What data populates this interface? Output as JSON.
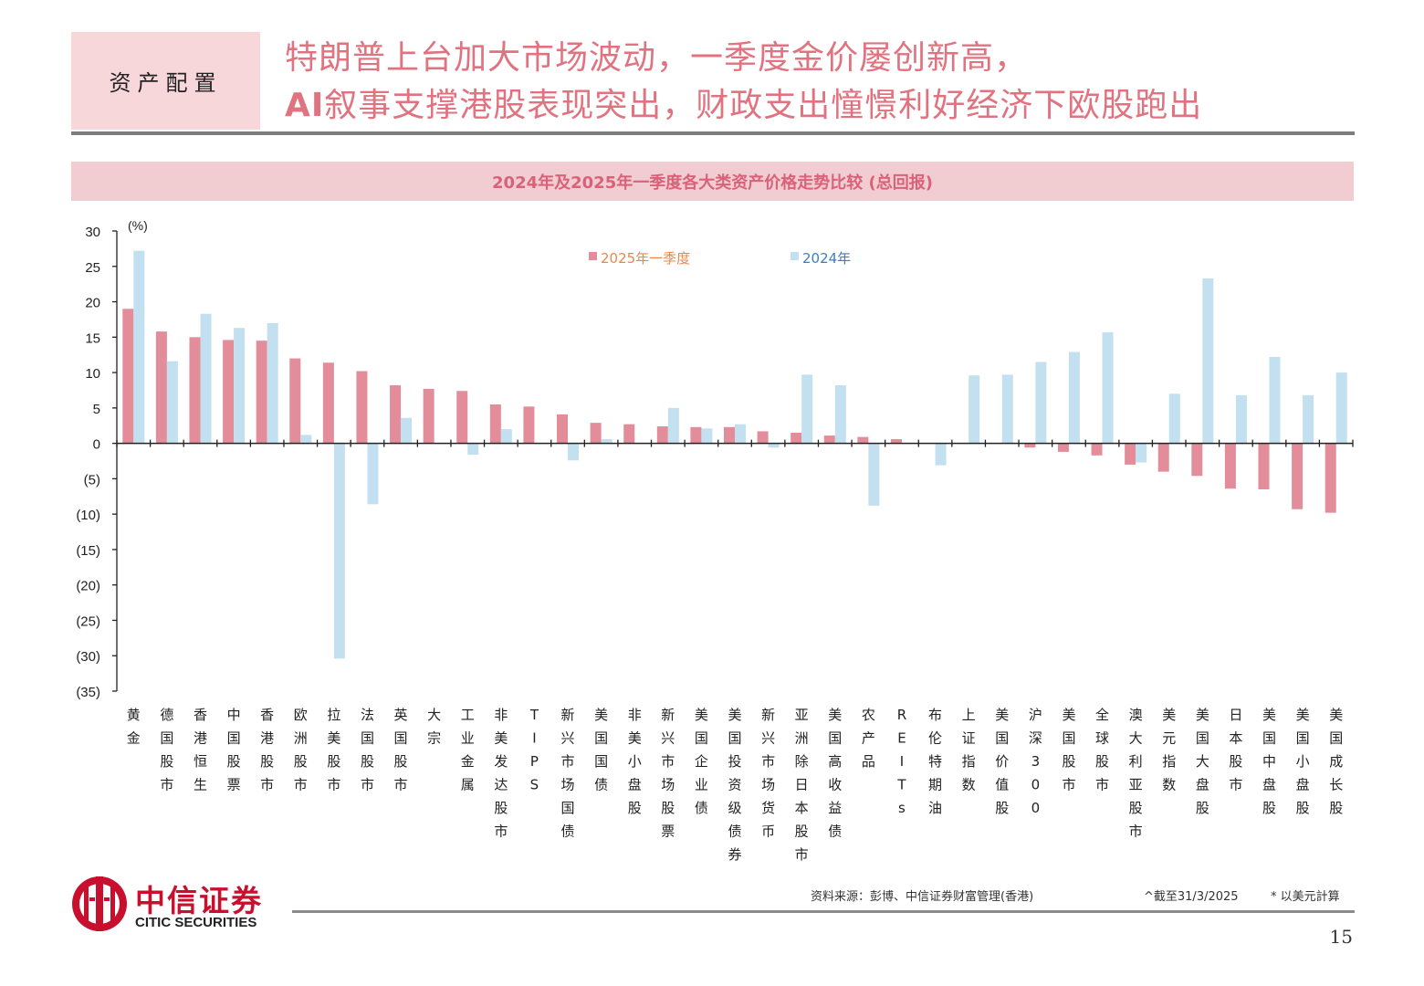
{
  "header": {
    "section_tag": "资产配置",
    "title_line1": "特朗普上台加大市场波动，一季度金价屡创新高，",
    "title_line2_prefix": "AI",
    "title_line2_rest": "叙事支撑港股表现突出，财政支出憧憬利好经济下欧股跑出"
  },
  "chart_title": "2024年及2025年一季度各大类资产价格走势比较 (总回报)",
  "colors": {
    "q1_2025": "#e28d99",
    "y2024": "#c2e0ef",
    "accent": "#e0737f",
    "legend_2025_text": "#e8884a",
    "legend_2024_text": "#3d7ebd"
  },
  "chart_data": {
    "type": "bar",
    "unit_label": "(%)",
    "ylim": [
      -35,
      30
    ],
    "yticks": [
      30,
      25,
      20,
      15,
      10,
      5,
      0,
      -5,
      -10,
      -15,
      -20,
      -25,
      -30,
      -35
    ],
    "ytick_labels": [
      "30",
      "25",
      "20",
      "15",
      "10",
      "5",
      "0",
      "(5)",
      "(10)",
      "(15)",
      "(20)",
      "(25)",
      "(30)",
      "(35)"
    ],
    "categories": [
      "黄金",
      "德国股市",
      "香港恒生",
      "中国股票",
      "香港股市",
      "欧洲股市",
      "拉美股市",
      "法国股市",
      "英国股市",
      "大宗",
      "工业金属",
      "非美发达股市",
      "TIPS",
      "新兴市场国债",
      "美国国债",
      "非美小盘股",
      "新兴市场股票",
      "美国企业债",
      "美国投资级债券",
      "新兴市场货币",
      "亚洲除日本股市",
      "美国高收益债",
      "农产品",
      "REITs",
      "布伦特期油",
      "上证指数",
      "美国价值股",
      "沪深300",
      "美国股市",
      "全球股市",
      "澳大利亚股市",
      "美元指数",
      "美国大盘股",
      "日本股市",
      "美国中盘股",
      "美国小盘股",
      "美国成长股"
    ],
    "series": [
      {
        "name": "2025年一季度",
        "values": [
          19.0,
          15.8,
          15.0,
          14.6,
          14.5,
          12.0,
          11.4,
          10.2,
          8.2,
          7.7,
          7.4,
          5.5,
          5.2,
          4.1,
          2.9,
          2.7,
          2.4,
          2.3,
          2.3,
          1.7,
          1.5,
          1.1,
          0.9,
          0.6,
          0.0,
          0.0,
          0.0,
          -0.6,
          -1.2,
          -1.7,
          -3.0,
          -4.0,
          -4.6,
          -6.4,
          -6.5,
          -9.3,
          -9.8
        ]
      },
      {
        "name": "2024年",
        "values": [
          27.2,
          11.6,
          18.3,
          16.3,
          17.0,
          1.2,
          -30.4,
          -8.6,
          3.6,
          0.0,
          -1.6,
          2.0,
          0.0,
          -2.4,
          0.6,
          0.0,
          5.0,
          2.1,
          2.7,
          -0.6,
          9.7,
          8.2,
          -8.8,
          0.0,
          -3.1,
          9.6,
          9.7,
          11.5,
          12.9,
          15.7,
          -2.7,
          7.0,
          23.3,
          6.8,
          12.2,
          6.8,
          10.0
        ]
      }
    ],
    "legend": [
      "2025年一季度",
      "2024年"
    ],
    "legend_position": "top-center",
    "grid": false
  },
  "footer": {
    "logo_cn": "中信证券",
    "logo_en": "CITIC SECURITIES",
    "source": "资料来源：彭博、中信证券财富管理(香港)",
    "asof": "^截至31/3/2025",
    "note": "* 以美元計算",
    "page": "15"
  }
}
